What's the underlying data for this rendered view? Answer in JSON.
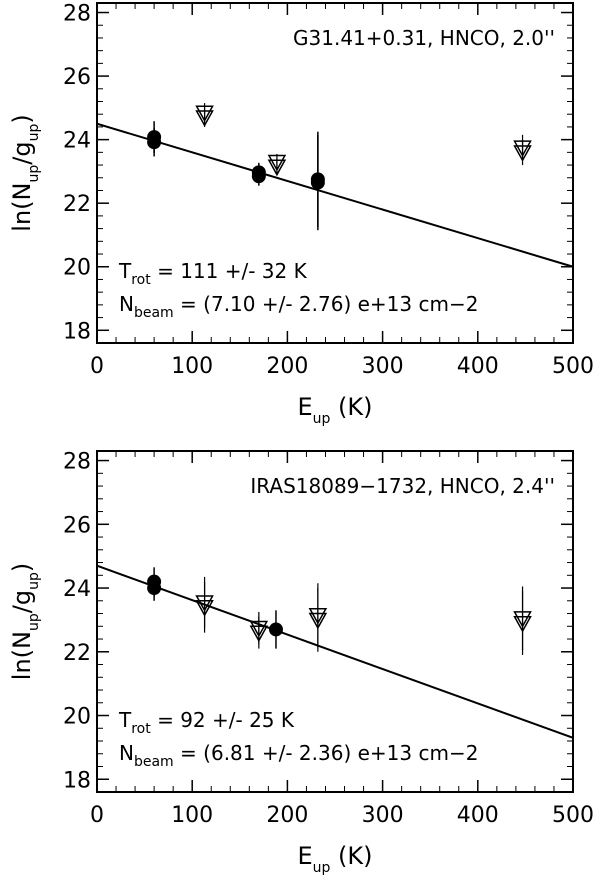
{
  "chart_data": [
    {
      "type": "scatter",
      "title": "G31.41+0.31, HNCO, 2.0''",
      "xlabel": {
        "main": "E",
        "sub": "up",
        "unit": "(K)"
      },
      "ylabel": {
        "pre": "ln(N",
        "sub1": "up",
        "mid": "/g",
        "sub2": "up",
        "post": ")"
      },
      "xlim": [
        0,
        500
      ],
      "ylim": [
        17.6,
        28.3
      ],
      "xticks": [
        0,
        100,
        200,
        300,
        400,
        500
      ],
      "yticks": [
        18,
        20,
        22,
        24,
        26,
        28
      ],
      "fit_line": {
        "x": [
          0,
          500
        ],
        "y": [
          24.5,
          20.0
        ]
      },
      "detections": [
        {
          "x": 60,
          "y": 24.08,
          "err": 0.5
        },
        {
          "x": 60,
          "y": 23.92,
          "err": 0.45
        },
        {
          "x": 170,
          "y": 22.97,
          "err": 0.3
        },
        {
          "x": 170,
          "y": 22.85,
          "err": 0.3
        },
        {
          "x": 232,
          "y": 22.75,
          "err": 1.5
        },
        {
          "x": 232,
          "y": 22.65,
          "err": 1.5
        }
      ],
      "upper_limits": [
        {
          "x": 113,
          "y": 24.85,
          "err": 0.3
        },
        {
          "x": 113,
          "y": 24.7,
          "err": 0.3
        },
        {
          "x": 189,
          "y": 23.3,
          "err": 0.25
        },
        {
          "x": 189,
          "y": 23.15,
          "err": 0.25
        },
        {
          "x": 447,
          "y": 23.75,
          "err": 0.4
        },
        {
          "x": 447,
          "y": 23.6,
          "err": 0.4
        }
      ],
      "annotations": {
        "trot": {
          "pre": "T",
          "sub": "rot",
          "text": " = 111 +/-  32 K"
        },
        "nbeam": {
          "pre": "N",
          "sub": "beam",
          "text": " = (7.10 +/- 2.76) e+13 cm−2"
        }
      }
    },
    {
      "type": "scatter",
      "title": "IRAS18089−1732, HNCO, 2.4''",
      "xlabel": {
        "main": "E",
        "sub": "up",
        "unit": "(K)"
      },
      "ylabel": {
        "pre": "ln(N",
        "sub1": "up",
        "mid": "/g",
        "sub2": "up",
        "post": ")"
      },
      "xlim": [
        0,
        500
      ],
      "ylim": [
        17.6,
        28.3
      ],
      "xticks": [
        0,
        100,
        200,
        300,
        400,
        500
      ],
      "yticks": [
        18,
        20,
        22,
        24,
        26,
        28
      ],
      "fit_line": {
        "x": [
          0,
          500
        ],
        "y": [
          24.7,
          19.3
        ]
      },
      "detections": [
        {
          "x": 60,
          "y": 24.2,
          "err": 0.45
        },
        {
          "x": 60,
          "y": 24.0,
          "err": 0.4
        },
        {
          "x": 188,
          "y": 22.7,
          "err": 0.6
        }
      ],
      "upper_limits": [
        {
          "x": 113,
          "y": 23.55,
          "err": 0.8
        },
        {
          "x": 113,
          "y": 23.4,
          "err": 0.8
        },
        {
          "x": 170,
          "y": 22.75,
          "err": 0.5
        },
        {
          "x": 170,
          "y": 22.6,
          "err": 0.5
        },
        {
          "x": 232,
          "y": 23.15,
          "err": 1.0
        },
        {
          "x": 232,
          "y": 23.0,
          "err": 1.0
        },
        {
          "x": 447,
          "y": 23.05,
          "err": 1.0
        },
        {
          "x": 447,
          "y": 22.9,
          "err": 1.0
        }
      ],
      "annotations": {
        "trot": {
          "pre": "T",
          "sub": "rot",
          "text": " =  92 +/- 25 K"
        },
        "nbeam": {
          "pre": "N",
          "sub": "beam",
          "text": " = (6.81 +/- 2.36) e+13 cm−2"
        }
      }
    }
  ]
}
